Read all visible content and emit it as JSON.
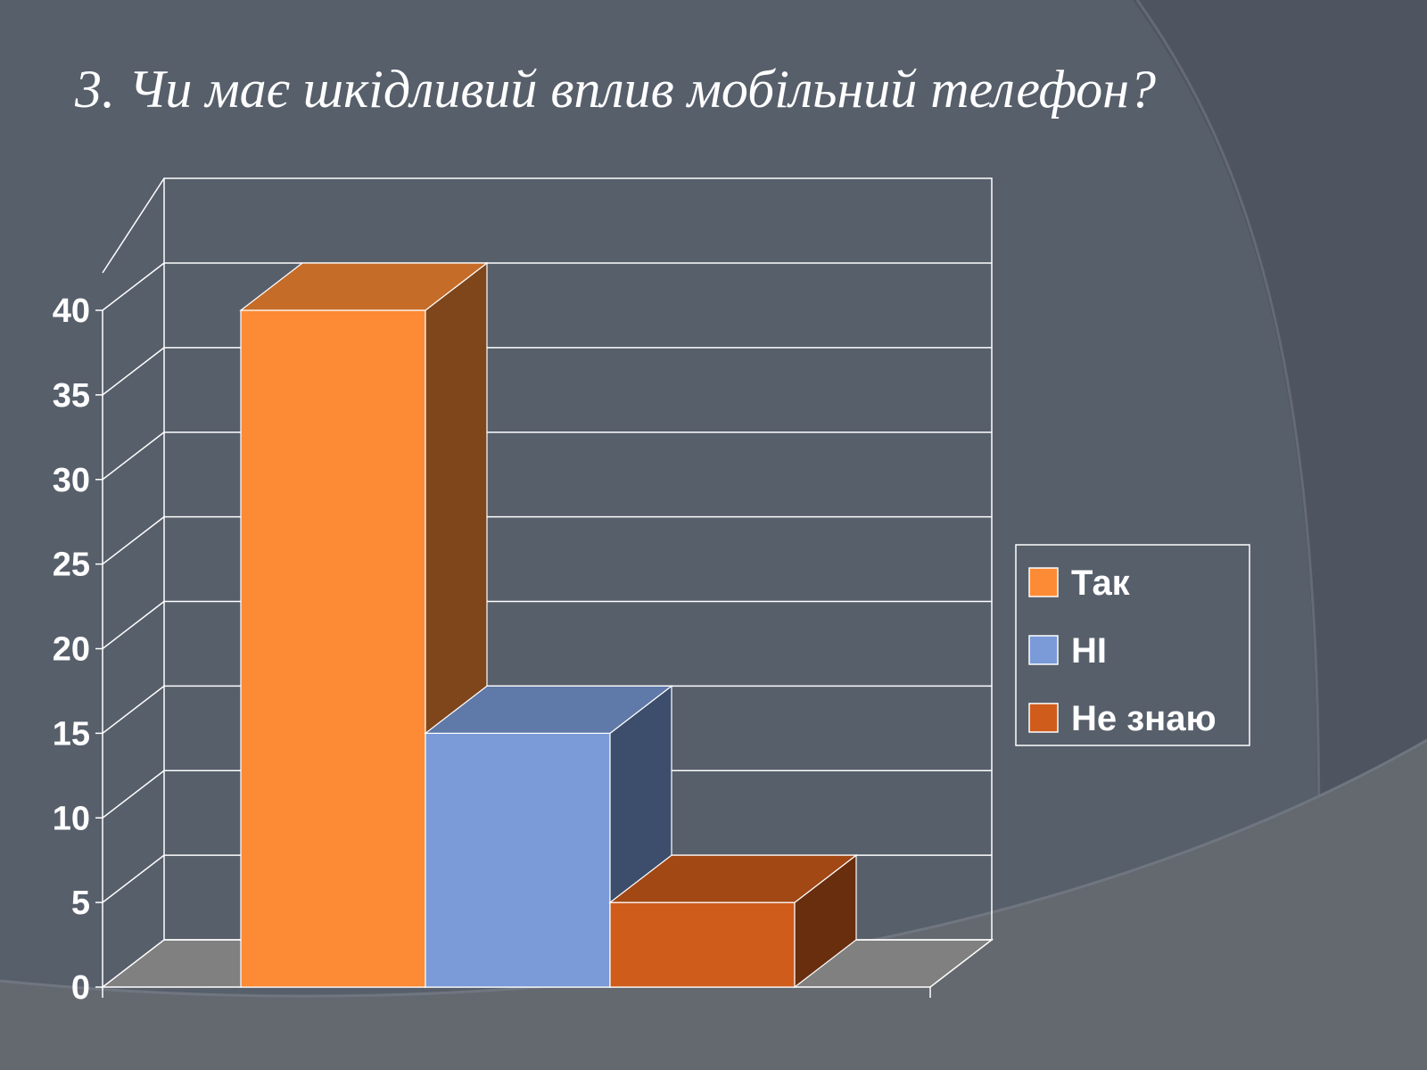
{
  "slide": {
    "title": "3. Чи має шкідливий вплив мобільний телефон?"
  },
  "chart_data": {
    "type": "bar",
    "style": "3d-column",
    "title": "",
    "xlabel": "",
    "ylabel": "",
    "categories": [
      "Так",
      "НІ",
      "Не знаю"
    ],
    "values": [
      40,
      15,
      5
    ],
    "colors": [
      "#fd8a35",
      "#7a9bd8",
      "#cf5c1b"
    ],
    "ylim": [
      0,
      40
    ],
    "yticks": [
      0,
      5,
      10,
      15,
      20,
      25,
      30,
      35,
      40
    ],
    "grid": true,
    "legend": {
      "position": "right",
      "entries": [
        "Так",
        "НІ",
        "Не знаю"
      ]
    }
  }
}
